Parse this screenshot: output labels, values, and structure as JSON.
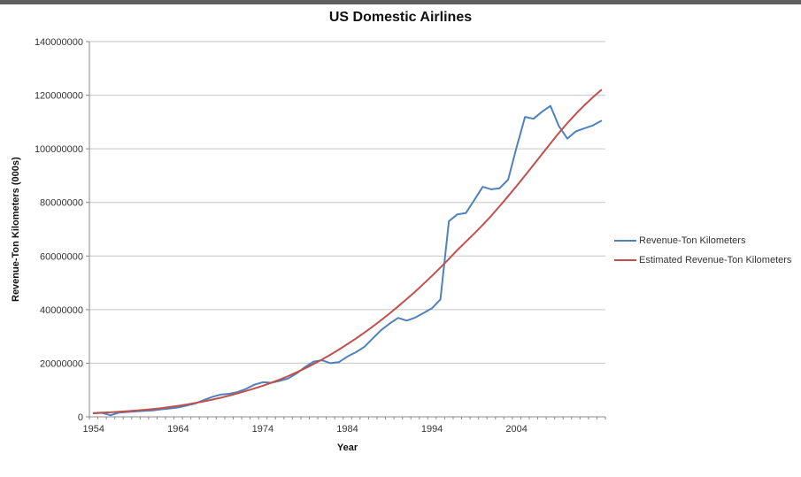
{
  "window": {
    "top_bar_color": "#5f5f5f"
  },
  "chart": {
    "title": "US Domestic Airlines",
    "x_axis_title": "Year",
    "y_axis_title": "Revenue-Ton Kilometers (000s)"
  },
  "chart_data": {
    "type": "line",
    "title": "US Domestic Airlines",
    "xlabel": "Year",
    "ylabel": "Revenue-Ton Kilometers (000s)",
    "ylim": [
      0,
      140000000
    ],
    "yticks": [
      0,
      20000000,
      40000000,
      60000000,
      80000000,
      100000000,
      120000000,
      140000000
    ],
    "ytick_labels": [
      "0",
      "20000000",
      "40000000",
      "60000000",
      "80000000",
      "100000000",
      "120000000",
      "140000000"
    ],
    "xtick_labels": [
      "1954",
      "1964",
      "1974",
      "1984",
      "1994",
      "2004"
    ],
    "grid": "horizontal",
    "legend_position": "right",
    "axis_color": "#898989",
    "grid_color": "#c6c6c6",
    "x": [
      1954,
      1955,
      1956,
      1957,
      1958,
      1959,
      1960,
      1961,
      1962,
      1963,
      1964,
      1965,
      1966,
      1967,
      1968,
      1969,
      1970,
      1971,
      1972,
      1973,
      1974,
      1975,
      1976,
      1977,
      1978,
      1979,
      1980,
      1981,
      1982,
      1983,
      1984,
      1985,
      1986,
      1987,
      1988,
      1989,
      1990,
      1991,
      1992,
      1993,
      1994,
      1995,
      1996,
      1997,
      1998,
      1999,
      2000,
      2001,
      2002,
      2003,
      2004,
      2005,
      2006,
      2007,
      2008,
      2009,
      2010,
      2011,
      2012,
      2013,
      2014
    ],
    "series": [
      {
        "name": "Revenue-Ton Kilometers",
        "color": "#4F81BD",
        "values": [
          1300000,
          1500000,
          600000,
          1600000,
          1800000,
          2000000,
          2200000,
          2400000,
          2800000,
          3100000,
          3500000,
          4200000,
          5000000,
          6200000,
          7400000,
          8300000,
          8600000,
          9200000,
          10400000,
          12000000,
          12900000,
          12700000,
          13400000,
          14300000,
          16200000,
          18600000,
          20600000,
          21100000,
          20000000,
          20400000,
          22500000,
          24100000,
          26100000,
          29300000,
          32400000,
          34800000,
          36900000,
          35900000,
          37000000,
          38700000,
          40500000,
          43800000,
          73000000,
          75500000,
          76000000,
          80900000,
          85800000,
          84900000,
          85300000,
          88500000,
          100500000,
          111900000,
          111200000,
          113800000,
          116000000,
          108500000,
          103800000,
          106500000,
          107600000,
          108700000,
          110400000
        ]
      },
      {
        "name": "Estimated Revenue-Ton Kilometers",
        "color": "#C0504D",
        "values": [
          1400000,
          1550000,
          1700000,
          1900000,
          2100000,
          2350000,
          2600000,
          2900000,
          3250000,
          3650000,
          4100000,
          4600000,
          5150000,
          5750000,
          6400000,
          7100000,
          7900000,
          8750000,
          9650000,
          10600000,
          11600000,
          12700000,
          13900000,
          15200000,
          16600000,
          18100000,
          19700000,
          21400000,
          23200000,
          25100000,
          27100000,
          29200000,
          31400000,
          33700000,
          36100000,
          38600000,
          41200000,
          43900000,
          46700000,
          49600000,
          52600000,
          55700000,
          58900000,
          62200000,
          65300000,
          68400000,
          71600000,
          75000000,
          78600000,
          82300000,
          86100000,
          90000000,
          94000000,
          98000000,
          102000000,
          105900000,
          109600000,
          113000000,
          116200000,
          119200000,
          121900000
        ]
      }
    ]
  }
}
